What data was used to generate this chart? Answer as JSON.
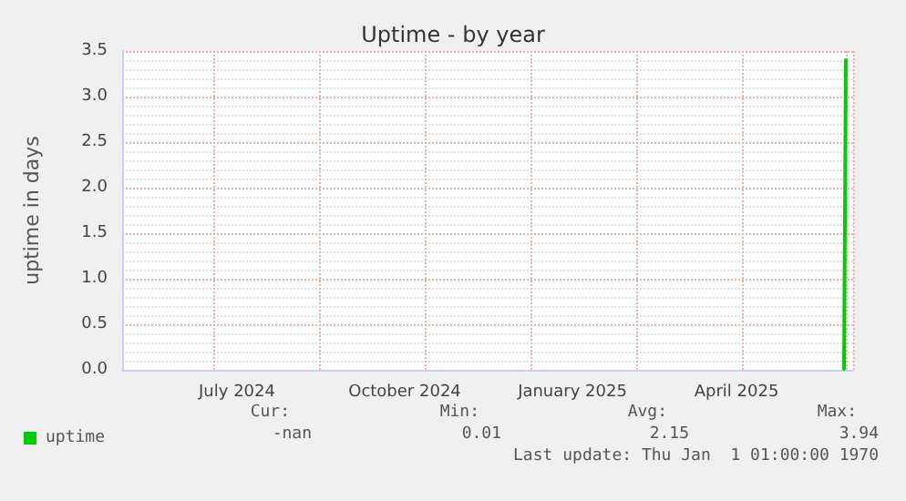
{
  "chart_data": {
    "type": "line",
    "title": "Uptime - by year",
    "ylabel": "uptime in days",
    "x": [
      "2025-06-14",
      "2025-06-15"
    ],
    "series": [
      {
        "name": "uptime",
        "color": "#00cc00",
        "values": [
          0.01,
          3.4
        ]
      }
    ],
    "xlim": [
      "2024-05-14",
      "2025-06-19"
    ],
    "xticks": [
      {
        "value": "2024-07-16",
        "label": "July 2024"
      },
      {
        "value": "2024-10-16",
        "label": "October 2024"
      },
      {
        "value": "2025-01-16",
        "label": "January 2025"
      },
      {
        "value": "2025-04-16",
        "label": "April 2025"
      }
    ],
    "ylim": [
      0,
      3.5
    ],
    "yticks": [
      {
        "value": 0,
        "label": "0.0"
      },
      {
        "value": 0.5,
        "label": "0.5"
      },
      {
        "value": 1,
        "label": "1.0"
      },
      {
        "value": 1.5,
        "label": "1.5"
      },
      {
        "value": 2,
        "label": "2.0"
      },
      {
        "value": 2.5,
        "label": "2.5"
      },
      {
        "value": 3,
        "label": "3.0"
      },
      {
        "value": 3.5,
        "label": "3.5"
      }
    ],
    "grid": true,
    "legend": "bottom left",
    "marker": "none",
    "line_style": "solid",
    "annotations": [
      "Cur:",
      "Min:",
      "Avg:",
      "Max:",
      "-nan",
      "0.01",
      "2.15",
      "3.94",
      "Last update: Thu Jan  1 01:00:00 1970"
    ]
  }
}
